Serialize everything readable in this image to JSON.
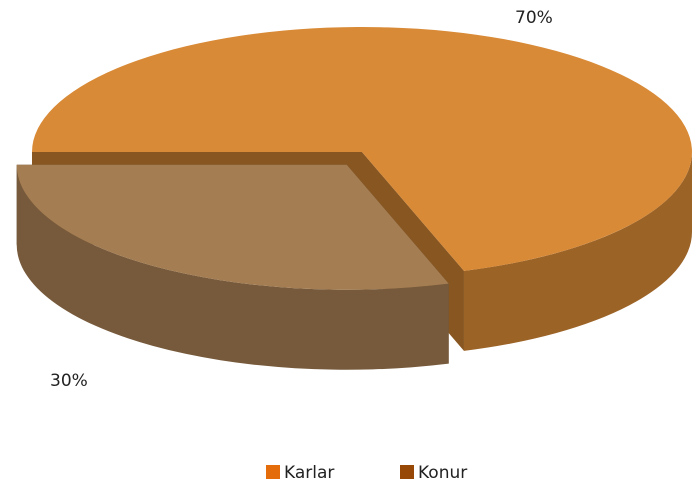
{
  "chart_data": {
    "type": "pie3d",
    "categories": [
      "Karlar",
      "Konur"
    ],
    "values": [
      70,
      30
    ],
    "value_labels": [
      "70%",
      "30%"
    ],
    "colors": [
      "#d98a36",
      "#a57d52"
    ],
    "legend_colors": [
      "#e46c0a",
      "#974806"
    ],
    "legend": "bottom"
  }
}
